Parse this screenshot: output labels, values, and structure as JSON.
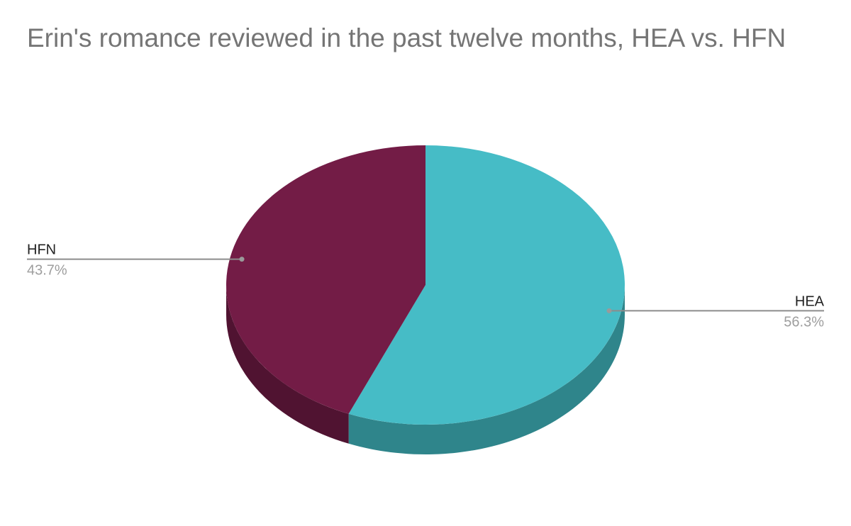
{
  "chart_data": {
    "type": "pie",
    "title": "Erin's romance reviewed in the past twelve months, HEA vs. HFN",
    "slices": [
      {
        "label": "HEA",
        "value": 56.3,
        "value_label": "56.3%",
        "color": "#46bcc6",
        "side_color": "#2f858b"
      },
      {
        "label": "HFN",
        "value": 43.7,
        "value_label": "43.7%",
        "color": "#731c46",
        "side_color": "#501331"
      }
    ],
    "legend": "labeled",
    "style": "3d"
  }
}
